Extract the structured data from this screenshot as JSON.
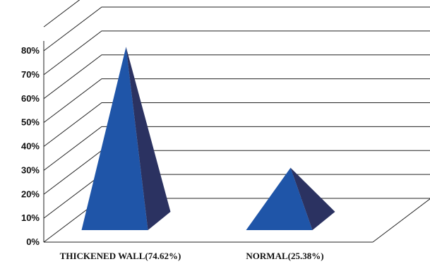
{
  "chart_data": {
    "type": "bar",
    "style": "3d-pyramid",
    "categories": [
      "THICKENED WALL(74.62%)",
      "NORMAL(25.38%)"
    ],
    "series": [
      {
        "values": [
          74.62,
          25.38
        ]
      }
    ],
    "ylim": [
      0,
      80
    ],
    "yticks": [
      "0%",
      "10%",
      "20%",
      "30%",
      "40%",
      "50%",
      "60%",
      "70%",
      "80%"
    ],
    "grid": true,
    "legend": "none",
    "colors": {
      "front": "#1f55a8",
      "side": "#2b3261"
    }
  }
}
